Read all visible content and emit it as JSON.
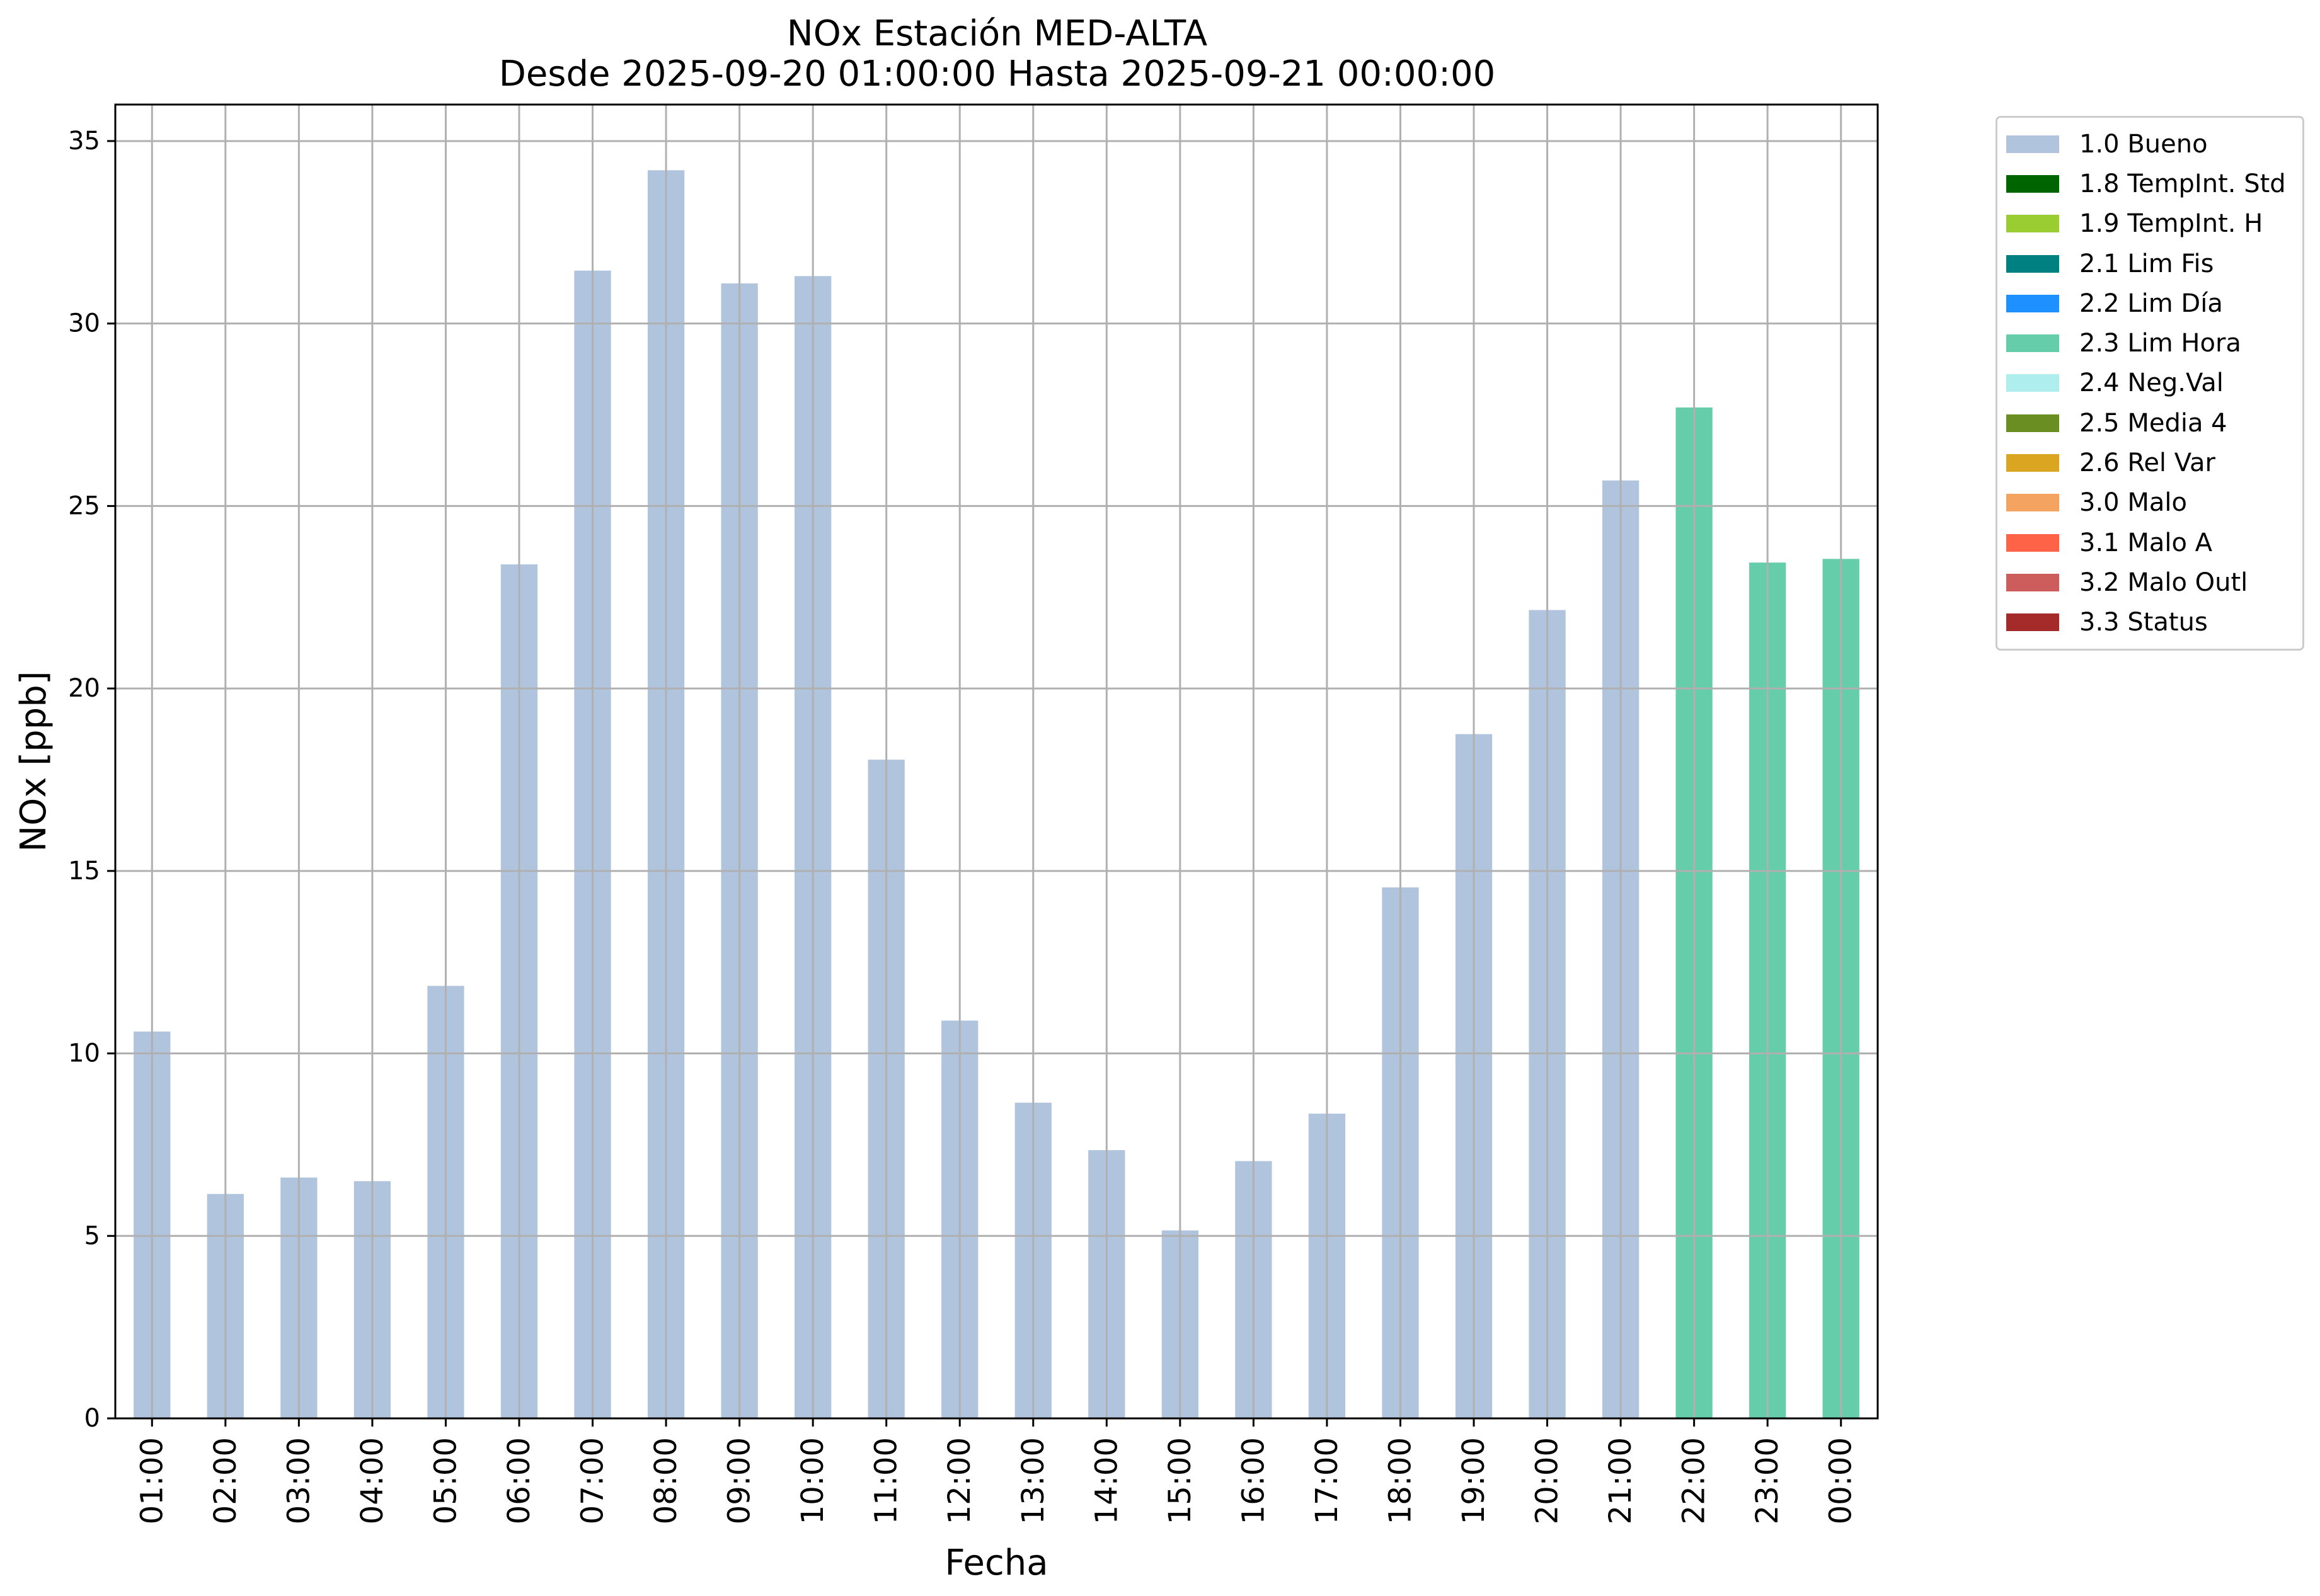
{
  "chart_data": {
    "type": "bar",
    "title": "NOx Estación MED-ALTA",
    "subtitle": "Desde 2025-09-20 01:00:00 Hasta 2025-09-21 00:00:00",
    "xlabel": "Fecha",
    "ylabel": "NOx [ppb]",
    "ylim": [
      0,
      36
    ],
    "yticks": [
      "0",
      "5",
      "10",
      "15",
      "20",
      "25",
      "30",
      "35"
    ],
    "grid": true,
    "legend_position": "outside-top-right",
    "categories": [
      "01:00",
      "02:00",
      "03:00",
      "04:00",
      "05:00",
      "06:00",
      "07:00",
      "08:00",
      "09:00",
      "10:00",
      "11:00",
      "12:00",
      "13:00",
      "14:00",
      "15:00",
      "16:00",
      "17:00",
      "18:00",
      "19:00",
      "20:00",
      "21:00",
      "22:00",
      "23:00",
      "00:00"
    ],
    "values": [
      10.6,
      6.15,
      6.6,
      6.5,
      11.85,
      23.4,
      31.45,
      34.2,
      31.1,
      31.3,
      18.05,
      10.9,
      8.65,
      7.35,
      5.15,
      7.05,
      8.35,
      14.55,
      18.75,
      22.15,
      25.7,
      27.7,
      23.45,
      23.55
    ],
    "flags": [
      "1.0 Bueno",
      "1.0 Bueno",
      "1.0 Bueno",
      "1.0 Bueno",
      "1.0 Bueno",
      "1.0 Bueno",
      "1.0 Bueno",
      "1.0 Bueno",
      "1.0 Bueno",
      "1.0 Bueno",
      "1.0 Bueno",
      "1.0 Bueno",
      "1.0 Bueno",
      "1.0 Bueno",
      "1.0 Bueno",
      "1.0 Bueno",
      "1.0 Bueno",
      "1.0 Bueno",
      "1.0 Bueno",
      "1.0 Bueno",
      "1.0 Bueno",
      "2.3 Lim Hora",
      "2.3 Lim Hora",
      "2.3 Lim Hora"
    ],
    "legend": [
      {
        "label": "1.0 Bueno",
        "color": "#b0c4de"
      },
      {
        "label": "1.8 TempInt. Std",
        "color": "#006400"
      },
      {
        "label": "1.9 TempInt. H",
        "color": "#9acd32"
      },
      {
        "label": "2.1 Lim Fis",
        "color": "#008080"
      },
      {
        "label": "2.2 Lim Día",
        "color": "#1e90ff"
      },
      {
        "label": "2.3 Lim Hora",
        "color": "#66cdaa"
      },
      {
        "label": "2.4 Neg.Val",
        "color": "#afeeee"
      },
      {
        "label": "2.5 Media 4",
        "color": "#6b8e23"
      },
      {
        "label": "2.6 Rel Var",
        "color": "#daa520"
      },
      {
        "label": "3.0 Malo",
        "color": "#f4a460"
      },
      {
        "label": "3.1 Malo A",
        "color": "#ff6347"
      },
      {
        "label": "3.2 Malo Outl",
        "color": "#cd5c5c"
      },
      {
        "label": "3.3 Status",
        "color": "#a52a2a"
      }
    ]
  }
}
